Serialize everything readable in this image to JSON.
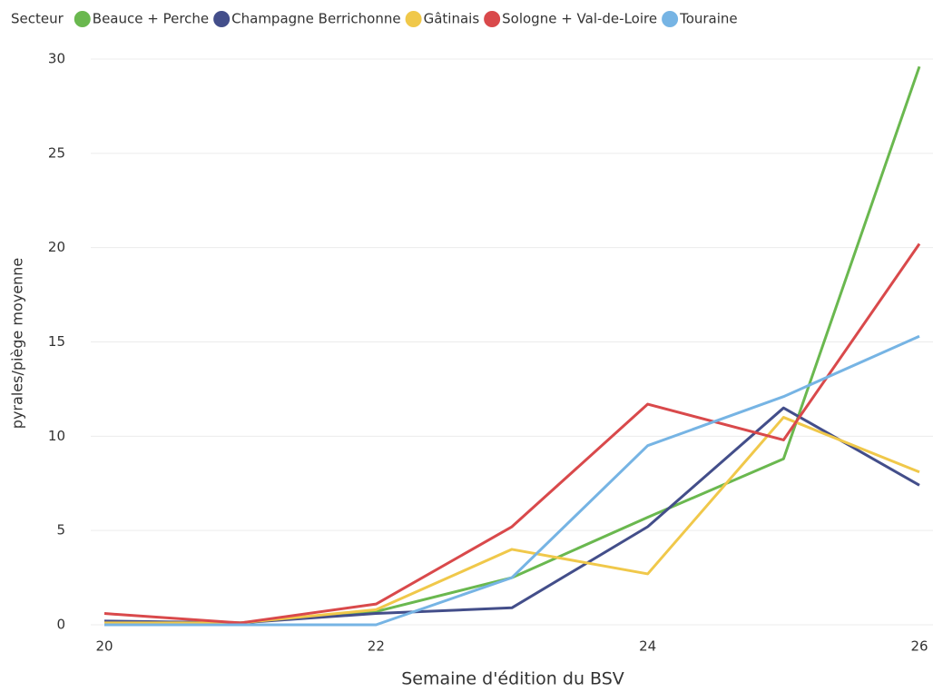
{
  "chart_data": {
    "type": "line",
    "legend_title": "Secteur",
    "x_label": "Semaine d'édition du BSV",
    "y_label": "pyrales/piège moyenne",
    "x": [
      20,
      21,
      22,
      23,
      24,
      25,
      26
    ],
    "xlim": [
      20,
      26
    ],
    "xticks": [
      20,
      22,
      24,
      26
    ],
    "ylim": [
      0,
      30
    ],
    "yticks": [
      0,
      5,
      10,
      15,
      20,
      25,
      30
    ],
    "grid": true,
    "legend": "top",
    "series": [
      {
        "name": "Beauce + Perche",
        "color": "#6ab84f",
        "values": [
          0.1,
          0.1,
          0.7,
          2.5,
          5.7,
          8.8,
          29.6
        ]
      },
      {
        "name": "Champagne Berrichonne",
        "color": "#434e8a",
        "values": [
          0.2,
          0.1,
          0.6,
          0.9,
          5.2,
          11.5,
          7.4
        ]
      },
      {
        "name": "Gâtinais",
        "color": "#f0c84a",
        "values": [
          0.1,
          0.1,
          0.8,
          4.0,
          2.7,
          11.0,
          8.1
        ]
      },
      {
        "name": "Sologne + Val-de-Loire",
        "color": "#d9494b",
        "values": [
          0.6,
          0.1,
          1.1,
          5.2,
          11.7,
          9.8,
          20.2
        ]
      },
      {
        "name": "Touraine",
        "color": "#76b4e4",
        "values": [
          0.0,
          0.0,
          0.0,
          2.5,
          9.5,
          12.1,
          15.3
        ]
      }
    ]
  }
}
